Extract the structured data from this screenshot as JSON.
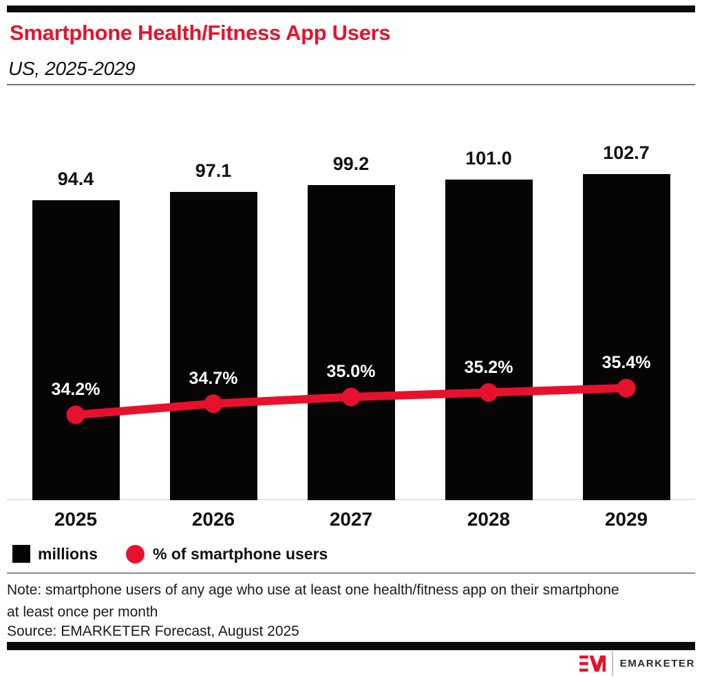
{
  "header": {
    "title": "Smartphone Health/Fitness App Users",
    "subtitle": "US, 2025-2029"
  },
  "chart_data": {
    "type": "bar",
    "categories": [
      "2025",
      "2026",
      "2027",
      "2028",
      "2029"
    ],
    "series": [
      {
        "name": "millions",
        "type": "bar",
        "values": [
          94.4,
          97.1,
          99.2,
          101.0,
          102.7
        ],
        "value_labels": [
          "94.4",
          "97.1",
          "99.2",
          "101.0",
          "102.7"
        ],
        "color": "#050505"
      },
      {
        "name": "% of smartphone users",
        "type": "line",
        "values": [
          34.2,
          34.7,
          35.0,
          35.2,
          35.4
        ],
        "value_labels": [
          "34.2%",
          "34.7%",
          "35.0%",
          "35.2%",
          "35.4%"
        ],
        "color": "#e8112d"
      }
    ],
    "legend": [
      {
        "label": "millions",
        "swatch": "square",
        "color": "#050505"
      },
      {
        "label": "% of smartphone users",
        "swatch": "circle",
        "color": "#e8112d"
      }
    ],
    "legend_position": "bottom-left",
    "grid": false,
    "axes_visible": false
  },
  "footer": {
    "note": "Note: smartphone users of any age who use at least one health/fitness app on their smartphone at least once per month",
    "source": "Source: EMARKETER Forecast, August 2025",
    "logo_text": "EMARKETER",
    "logo_mark": "EM-mark"
  },
  "colors": {
    "accent_red": "#e8112d",
    "bar_black": "#050505",
    "baseline": "#dfe3f0",
    "rule_gray": "#8c8c8c",
    "text_dark": "#1a1a1a"
  }
}
